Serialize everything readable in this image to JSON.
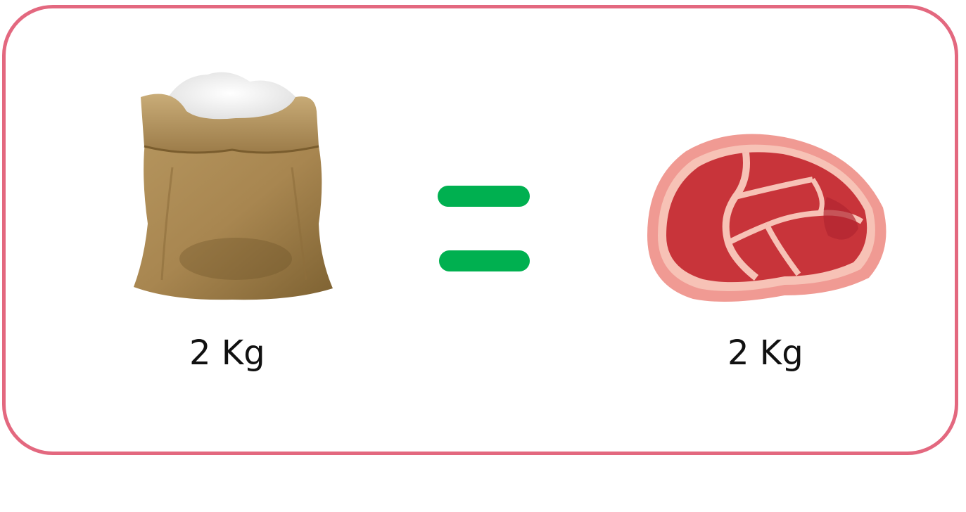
{
  "left_item": {
    "icon": "sack-of-flour-icon",
    "weight_label": "2 Kg"
  },
  "operator": {
    "icon": "equals-sign-icon",
    "color": "#00b050"
  },
  "right_item": {
    "icon": "meat-steak-icon",
    "weight_label": "2 Kg"
  },
  "colors": {
    "border": "#e3687f",
    "text": "#111111"
  }
}
